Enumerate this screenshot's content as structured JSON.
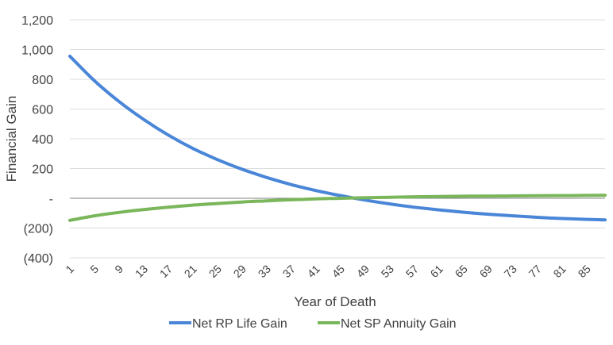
{
  "chart_data": {
    "type": "line",
    "title": "",
    "xlabel": "Year of Death",
    "ylabel": "Financial Gain",
    "ylim": [
      -400,
      1200
    ],
    "yticks": [
      {
        "value": 1200,
        "label": "1,200"
      },
      {
        "value": 1000,
        "label": "1,000"
      },
      {
        "value": 800,
        "label": "800"
      },
      {
        "value": 600,
        "label": "600"
      },
      {
        "value": 400,
        "label": "400"
      },
      {
        "value": 200,
        "label": "200"
      },
      {
        "value": 0,
        "label": "-"
      },
      {
        "value": -200,
        "label": "(200)"
      },
      {
        "value": -400,
        "label": "(400)"
      }
    ],
    "xrange": [
      1,
      88
    ],
    "xticks": [
      "1",
      "5",
      "9",
      "13",
      "17",
      "21",
      "25",
      "29",
      "33",
      "37",
      "41",
      "45",
      "49",
      "53",
      "57",
      "61",
      "65",
      "69",
      "73",
      "77",
      "81",
      "85"
    ],
    "grid": true,
    "legend_position": "bottom",
    "series": [
      {
        "name": "Net RP Life Gain",
        "color": "#4a86d8",
        "x": [
          1,
          5,
          9,
          13,
          17,
          21,
          25,
          29,
          33,
          37,
          41,
          45,
          49,
          53,
          57,
          61,
          65,
          69,
          73,
          77,
          81,
          85,
          88
        ],
        "values": [
          955,
          790,
          650,
          530,
          425,
          335,
          260,
          195,
          140,
          92,
          52,
          18,
          -12,
          -38,
          -60,
          -78,
          -94,
          -107,
          -118,
          -128,
          -136,
          -142,
          -145
        ]
      },
      {
        "name": "Net SP Annuity Gain",
        "color": "#7ab65a",
        "x": [
          1,
          5,
          9,
          13,
          17,
          21,
          25,
          29,
          33,
          37,
          41,
          45,
          49,
          53,
          57,
          61,
          65,
          69,
          73,
          77,
          81,
          85,
          88
        ],
        "values": [
          -148,
          -118,
          -95,
          -76,
          -60,
          -46,
          -35,
          -25,
          -17,
          -10,
          -4,
          0,
          4,
          7,
          10,
          12,
          14,
          15,
          16,
          17,
          18,
          19,
          20
        ]
      }
    ]
  }
}
